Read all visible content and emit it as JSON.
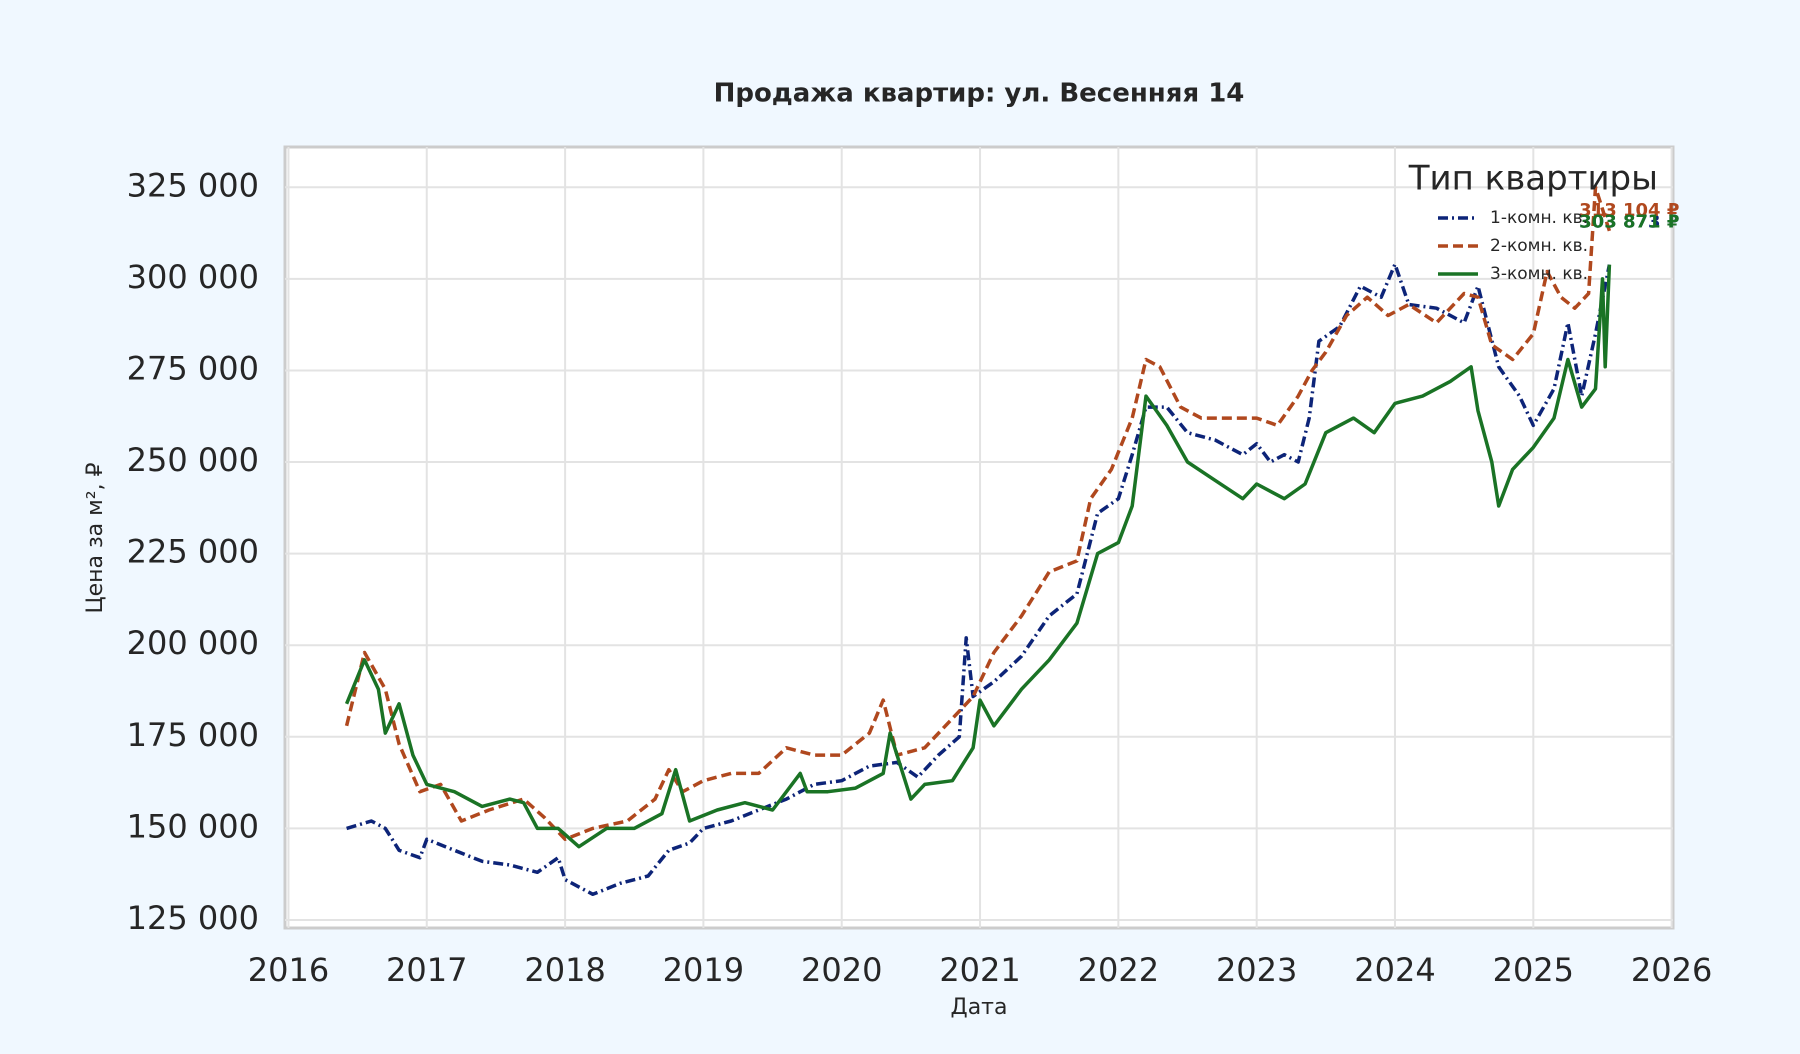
{
  "chart_data": {
    "type": "line",
    "title": "Продажа квартир: ул. Весенняя 14",
    "x_label": "Дата",
    "y_label": "Цена за м², ₽",
    "legend_title": "Тип квартиры",
    "legend_position": "upper right",
    "grid": true,
    "xlim": [
      2015.975,
      2026.01
    ],
    "xticks": [
      2016,
      2017,
      2018,
      2019,
      2020,
      2021,
      2022,
      2023,
      2024,
      2025,
      2026
    ],
    "ylim": [
      122800,
      336000
    ],
    "yticks": [
      {
        "value": 125000,
        "label": "125 000"
      },
      {
        "value": 150000,
        "label": "150 000"
      },
      {
        "value": 175000,
        "label": "175 000"
      },
      {
        "value": 200000,
        "label": "200 000"
      },
      {
        "value": 225000,
        "label": "225 000"
      },
      {
        "value": 250000,
        "label": "250 000"
      },
      {
        "value": 275000,
        "label": "275 000"
      },
      {
        "value": 300000,
        "label": "300 000"
      },
      {
        "value": 325000,
        "label": "325 000"
      }
    ],
    "series": [
      {
        "name": "1-комн. кв.",
        "color": "#0d2478",
        "dash": "10 4 2 4",
        "last_label": "303 873 ₽",
        "x": [
          2016.42,
          2016.6,
          2016.7,
          2016.8,
          2016.95,
          2017.0,
          2017.2,
          2017.4,
          2017.6,
          2017.8,
          2017.95,
          2018.0,
          2018.2,
          2018.4,
          2018.6,
          2018.75,
          2018.9,
          2019.0,
          2019.2,
          2019.4,
          2019.6,
          2019.8,
          2020.0,
          2020.2,
          2020.4,
          2020.55,
          2020.7,
          2020.85,
          2020.9,
          2020.95,
          2021.1,
          2021.3,
          2021.5,
          2021.7,
          2021.85,
          2022.0,
          2022.1,
          2022.2,
          2022.35,
          2022.5,
          2022.7,
          2022.9,
          2023.0,
          2023.1,
          2023.2,
          2023.3,
          2023.38,
          2023.45,
          2023.6,
          2023.75,
          2023.9,
          2024.0,
          2024.1,
          2024.3,
          2024.5,
          2024.6,
          2024.75,
          2024.9,
          2025.0,
          2025.15,
          2025.25,
          2025.35,
          2025.45,
          2025.55
        ],
        "values": [
          150000,
          152000,
          150000,
          144000,
          142000,
          147000,
          144000,
          141000,
          140000,
          138000,
          142000,
          136000,
          132000,
          135000,
          137000,
          144000,
          146000,
          150000,
          152000,
          155000,
          158000,
          162000,
          163000,
          167000,
          168000,
          164000,
          170000,
          175000,
          202000,
          186000,
          190000,
          197000,
          208000,
          214000,
          236000,
          240000,
          252000,
          265000,
          265000,
          258000,
          256000,
          252000,
          255000,
          250000,
          252000,
          250000,
          262000,
          283000,
          287000,
          298000,
          295000,
          304000,
          293000,
          292000,
          288000,
          298000,
          276000,
          268000,
          260000,
          270000,
          288000,
          268000,
          285000,
          303873
        ]
      },
      {
        "name": "2-комн. кв.",
        "color": "#b0481e",
        "dash": "10 5",
        "last_label": "313 104 ₽",
        "x": [
          2016.42,
          2016.55,
          2016.7,
          2016.8,
          2016.95,
          2017.1,
          2017.25,
          2017.45,
          2017.7,
          2017.85,
          2018.0,
          2018.2,
          2018.45,
          2018.65,
          2018.75,
          2018.85,
          2019.0,
          2019.2,
          2019.4,
          2019.6,
          2019.8,
          2020.0,
          2020.2,
          2020.3,
          2020.4,
          2020.6,
          2020.8,
          2020.95,
          2021.1,
          2021.3,
          2021.5,
          2021.7,
          2021.8,
          2021.95,
          2022.1,
          2022.2,
          2022.3,
          2022.45,
          2022.6,
          2022.8,
          2023.0,
          2023.15,
          2023.3,
          2023.4,
          2023.5,
          2023.65,
          2023.8,
          2023.95,
          2024.1,
          2024.3,
          2024.5,
          2024.6,
          2024.7,
          2024.85,
          2025.0,
          2025.1,
          2025.2,
          2025.3,
          2025.4,
          2025.45,
          2025.55
        ],
        "values": [
          178000,
          198000,
          188000,
          173000,
          160000,
          162000,
          152000,
          155000,
          158000,
          153000,
          147000,
          150000,
          152000,
          158000,
          166000,
          160000,
          163000,
          165000,
          165000,
          172000,
          170000,
          170000,
          176000,
          185000,
          170000,
          172000,
          180000,
          186000,
          198000,
          208000,
          220000,
          223000,
          240000,
          248000,
          262000,
          278000,
          276000,
          265000,
          262000,
          262000,
          262000,
          260000,
          268000,
          275000,
          280000,
          290000,
          295000,
          290000,
          293000,
          288000,
          296000,
          295000,
          282000,
          278000,
          285000,
          302000,
          295000,
          292000,
          296000,
          325000,
          313104
        ]
      },
      {
        "name": "3-комн. кв.",
        "color": "#1a7325",
        "dash": "",
        "last_label": "303 871 ₽",
        "x": [
          2016.42,
          2016.55,
          2016.65,
          2016.7,
          2016.8,
          2016.9,
          2017.0,
          2017.2,
          2017.4,
          2017.6,
          2017.7,
          2017.8,
          2017.95,
          2018.1,
          2018.3,
          2018.5,
          2018.7,
          2018.8,
          2018.9,
          2019.1,
          2019.3,
          2019.5,
          2019.7,
          2019.75,
          2019.9,
          2020.1,
          2020.3,
          2020.35,
          2020.5,
          2020.6,
          2020.8,
          2020.95,
          2021.0,
          2021.1,
          2021.3,
          2021.5,
          2021.7,
          2021.85,
          2022.0,
          2022.1,
          2022.2,
          2022.35,
          2022.5,
          2022.7,
          2022.9,
          2023.0,
          2023.2,
          2023.35,
          2023.5,
          2023.7,
          2023.85,
          2024.0,
          2024.2,
          2024.4,
          2024.55,
          2024.6,
          2024.7,
          2024.75,
          2024.85,
          2025.0,
          2025.15,
          2025.25,
          2025.35,
          2025.45,
          2025.5,
          2025.52,
          2025.55
        ],
        "values": [
          184000,
          196000,
          188000,
          176000,
          184000,
          170000,
          162000,
          160000,
          156000,
          158000,
          157000,
          150000,
          150000,
          145000,
          150000,
          150000,
          154000,
          166000,
          152000,
          155000,
          157000,
          155000,
          165000,
          160000,
          160000,
          161000,
          165000,
          176000,
          158000,
          162000,
          163000,
          172000,
          185000,
          178000,
          188000,
          196000,
          206000,
          225000,
          228000,
          238000,
          268000,
          260000,
          250000,
          245000,
          240000,
          244000,
          240000,
          244000,
          258000,
          262000,
          258000,
          266000,
          268000,
          272000,
          276000,
          264000,
          250000,
          238000,
          248000,
          254000,
          262000,
          278000,
          265000,
          270000,
          300000,
          276000,
          303871
        ]
      }
    ]
  }
}
